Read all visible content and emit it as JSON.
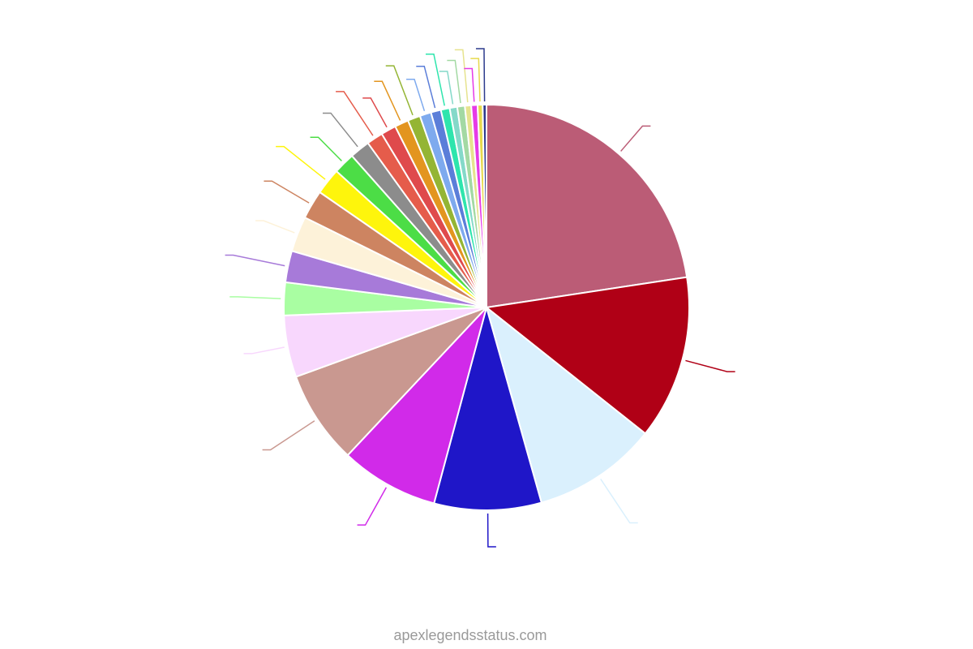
{
  "chart_data": {
    "type": "pie",
    "values": [
      22.5,
      13.0,
      9.9,
      8.5,
      7.8,
      7.4,
      4.9,
      2.6,
      2.5,
      2.8,
      2.3,
      2.1,
      1.7,
      1.6,
      1.3,
      1.2,
      1.1,
      1.0,
      0.9,
      0.8,
      0.7,
      0.6,
      0.6,
      0.5,
      0.5,
      0.4,
      0.3
    ],
    "colors": [
      "#bb5c76",
      "#b00016",
      "#daf0fd",
      "#1f16c8",
      "#d12ae9",
      "#c99890",
      "#f8d7fd",
      "#a9fea2",
      "#a77ad9",
      "#fdf2d9",
      "#cd8461",
      "#fef50c",
      "#4cdd46",
      "#8c8c8c",
      "#e55c4b",
      "#df4a4c",
      "#e3951f",
      "#94b534",
      "#7eaaee",
      "#5b7ed9",
      "#2ee5ad",
      "#84d9c9",
      "#a3d9a3",
      "#e6e38e",
      "#e63be7",
      "#e6d94c",
      "#2c3a8c"
    ]
  },
  "watermark": "apexlegendsstatus.com"
}
